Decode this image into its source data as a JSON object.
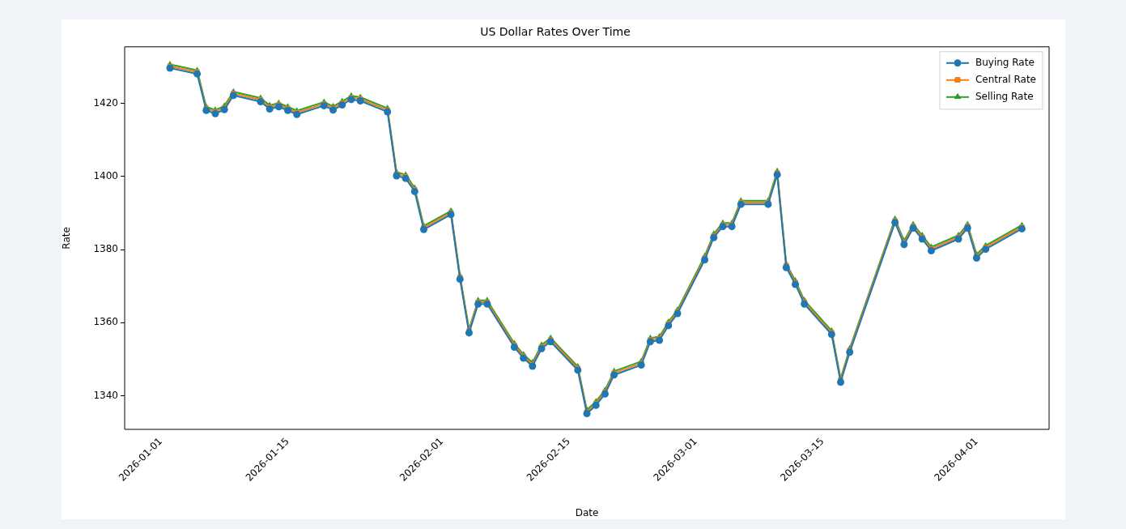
{
  "chart_data": {
    "type": "line",
    "title": "US Dollar Rates Over Time",
    "xlabel": "Date",
    "ylabel": "Rate",
    "x": [
      "2026-01-02",
      "2026-01-05",
      "2026-01-06",
      "2026-01-07",
      "2026-01-08",
      "2026-01-09",
      "2026-01-12",
      "2026-01-13",
      "2026-01-14",
      "2026-01-15",
      "2026-01-16",
      "2026-01-19",
      "2026-01-20",
      "2026-01-21",
      "2026-01-22",
      "2026-01-23",
      "2026-01-26",
      "2026-01-27",
      "2026-01-28",
      "2026-01-29",
      "2026-01-30",
      "2026-02-02",
      "2026-02-03",
      "2026-02-04",
      "2026-02-05",
      "2026-02-06",
      "2026-02-09",
      "2026-02-10",
      "2026-02-11",
      "2026-02-12",
      "2026-02-13",
      "2026-02-16",
      "2026-02-17",
      "2026-02-18",
      "2026-02-19",
      "2026-02-20",
      "2026-02-23",
      "2026-02-24",
      "2026-02-25",
      "2026-02-26",
      "2026-02-27",
      "2026-03-02",
      "2026-03-03",
      "2026-03-04",
      "2026-03-05",
      "2026-03-06",
      "2026-03-09",
      "2026-03-10",
      "2026-03-11",
      "2026-03-12",
      "2026-03-13",
      "2026-03-16",
      "2026-03-17",
      "2026-03-18",
      "2026-03-23",
      "2026-03-24",
      "2026-03-25",
      "2026-03-26",
      "2026-03-27",
      "2026-03-30",
      "2026-03-31",
      "2026-04-01",
      "2026-04-02",
      "2026-04-06"
    ],
    "series": [
      {
        "name": "Buying Rate",
        "color": "#1f77b4",
        "marker": "circle",
        "values": [
          1429.7,
          1428.1,
          1418.1,
          1417.2,
          1418.3,
          1422.2,
          1420.5,
          1418.5,
          1419.1,
          1418.1,
          1417.0,
          1419.4,
          1418.2,
          1419.6,
          1421.1,
          1420.7,
          1417.7,
          1400.2,
          1399.5,
          1395.9,
          1385.5,
          1389.6,
          1371.9,
          1357.2,
          1365.1,
          1365.1,
          1353.3,
          1350.3,
          1348.1,
          1352.9,
          1354.8,
          1347.0,
          1335.1,
          1337.4,
          1340.5,
          1345.7,
          1348.4,
          1354.8,
          1355.2,
          1359.2,
          1362.5,
          1377.2,
          1383.3,
          1386.3,
          1386.3,
          1392.4,
          1392.4,
          1400.5,
          1375.1,
          1370.5,
          1365.1,
          1356.8,
          1343.7,
          1351.9,
          1387.4,
          1381.4,
          1385.9,
          1382.9,
          1379.7,
          1382.9,
          1385.9,
          1377.7,
          1380.1,
          1385.7
        ]
      },
      {
        "name": "Central Rate",
        "color": "#ff7f0e",
        "marker": "square",
        "values": [
          1430.2,
          1428.6,
          1418.6,
          1417.7,
          1418.8,
          1422.7,
          1421.0,
          1419.0,
          1419.6,
          1418.6,
          1417.5,
          1419.9,
          1418.7,
          1420.1,
          1421.6,
          1421.2,
          1418.2,
          1400.7,
          1400.0,
          1396.4,
          1386.0,
          1390.1,
          1372.4,
          1357.7,
          1365.6,
          1365.6,
          1353.8,
          1350.8,
          1348.6,
          1353.4,
          1355.3,
          1347.5,
          1335.6,
          1337.9,
          1341.0,
          1346.2,
          1348.9,
          1355.3,
          1355.7,
          1359.7,
          1363.0,
          1377.7,
          1383.8,
          1386.8,
          1386.8,
          1392.9,
          1392.9,
          1401.0,
          1375.6,
          1371.0,
          1365.6,
          1357.3,
          1344.2,
          1352.4,
          1387.9,
          1381.9,
          1386.4,
          1383.4,
          1380.2,
          1383.4,
          1386.4,
          1378.2,
          1380.6,
          1386.2
        ]
      },
      {
        "name": "Selling Rate",
        "color": "#2ca02c",
        "marker": "triangle",
        "values": [
          1430.7,
          1429.1,
          1419.1,
          1418.2,
          1419.3,
          1423.2,
          1421.5,
          1419.5,
          1420.1,
          1419.1,
          1418.0,
          1420.4,
          1419.2,
          1420.6,
          1422.1,
          1421.7,
          1418.7,
          1401.2,
          1400.5,
          1396.9,
          1386.5,
          1390.6,
          1372.9,
          1358.2,
          1366.1,
          1366.1,
          1354.3,
          1351.3,
          1349.1,
          1353.9,
          1355.8,
          1348.0,
          1336.1,
          1338.4,
          1341.5,
          1346.7,
          1349.4,
          1355.8,
          1356.2,
          1360.2,
          1363.5,
          1378.2,
          1384.3,
          1387.3,
          1387.3,
          1393.4,
          1393.4,
          1401.5,
          1376.1,
          1371.5,
          1366.1,
          1357.8,
          1344.7,
          1352.9,
          1388.4,
          1382.4,
          1386.9,
          1383.9,
          1380.7,
          1383.9,
          1386.9,
          1378.7,
          1381.1,
          1386.7
        ]
      }
    ],
    "xlim": [
      "2025-12-28",
      "2026-04-09"
    ],
    "xticks": [
      "2026-01-01",
      "2026-01-15",
      "2026-02-01",
      "2026-02-15",
      "2026-03-01",
      "2026-03-15",
      "2026-04-01"
    ],
    "ylim": [
      1330.8,
      1435.5
    ],
    "yticks": [
      1340,
      1360,
      1380,
      1400,
      1420
    ],
    "grid": false,
    "legend": "top right",
    "line_style": "solid"
  }
}
